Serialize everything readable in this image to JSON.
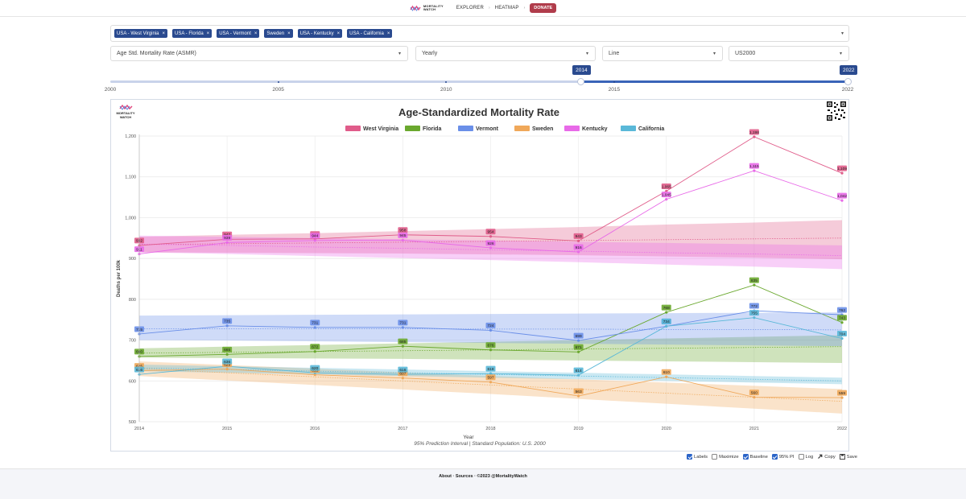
{
  "nav": {
    "logo_line1": "MORTALITY",
    "logo_line2": "WATCH",
    "explorer": "EXPLORER",
    "heatmap": "HEATMAP",
    "donate": "DONATE",
    "separator": "›"
  },
  "countries": [
    {
      "label": "USA - West Virginia",
      "remove": "×"
    },
    {
      "label": "USA - Florida",
      "remove": "×"
    },
    {
      "label": "USA - Vermont",
      "remove": "×"
    },
    {
      "label": "Sweden",
      "remove": "×"
    },
    {
      "label": "USA - Kentucky",
      "remove": "×"
    },
    {
      "label": "USA - California",
      "remove": "×"
    }
  ],
  "controls": {
    "metric": "Age Std. Mortality Rate (ASMR)",
    "period": "Yearly",
    "chart_type": "Line",
    "std_population": "US2000",
    "caret": "▾"
  },
  "slider": {
    "range_start": 2000,
    "range_end": 2022,
    "selected_from": "2014",
    "selected_to": "2022",
    "tick_labels": [
      "2000",
      "2005",
      "2010",
      "2015",
      "2022"
    ],
    "tick_values": [
      2000,
      2005,
      2010,
      2015,
      2022
    ]
  },
  "chart_logo": {
    "line1": "MORTALITY",
    "line2": "WATCH"
  },
  "options": {
    "labels": {
      "label": "Labels",
      "checked": true
    },
    "maximize": {
      "label": "Maximize",
      "checked": false
    },
    "baseline": {
      "label": "Baseline",
      "checked": true
    },
    "pi": {
      "label": "95% PI",
      "checked": true
    },
    "log": {
      "label": "Log",
      "checked": false
    },
    "copy": "Copy",
    "save": "Save"
  },
  "footer": "About · Sources · ©2023 @MortalityWatch",
  "chart_data": {
    "type": "line",
    "title": "Age-Standardized Mortality Rate",
    "xlabel": "Year",
    "ylabel": "Deaths per 100k",
    "subtitle": "95% Prediction Interval | Standard Population: U.S. 2000",
    "x": [
      2014,
      2015,
      2016,
      2017,
      2018,
      2019,
      2020,
      2021,
      2022
    ],
    "ylim": [
      500,
      1200
    ],
    "yticks": [
      500,
      600,
      700,
      800,
      900,
      1000,
      1100,
      1200
    ],
    "ytick_labels": [
      "500",
      "600",
      "700",
      "800",
      "900",
      "1,000",
      "1,100",
      "1,200"
    ],
    "grid": true,
    "legend": "top-center",
    "series": [
      {
        "name": "West Virginia",
        "color": "#e05c8a",
        "values": [
          932,
          947,
          948,
          958,
          954,
          943,
          1065,
          1198,
          1109
        ],
        "labels": [
          "932",
          "947",
          "948",
          "958",
          "954",
          "943",
          "1,065",
          "1,198",
          "1,109"
        ],
        "baseline": [
          934,
          936,
          938,
          940,
          942,
          944,
          946,
          948,
          950
        ],
        "pi_lo": [
          915,
          914,
          913,
          912,
          910,
          908,
          905,
          902,
          898
        ],
        "pi_hi": [
          953,
          958,
          962,
          967,
          972,
          977,
          983,
          988,
          994
        ]
      },
      {
        "name": "Florida",
        "color": "#6aa82e",
        "values": [
          660,
          665,
          672,
          685,
          676,
          671,
          768,
          835,
          743
        ],
        "labels": [
          "660",
          "665",
          "672",
          "685",
          "676",
          "671",
          "768",
          "835",
          "743"
        ],
        "baseline": [
          668,
          670,
          672,
          674,
          676,
          678,
          680,
          682,
          684
        ],
        "pi_lo": [
          657,
          656,
          655,
          654,
          652,
          650,
          648,
          646,
          644
        ],
        "pi_hi": [
          680,
          684,
          688,
          692,
          696,
          700,
          704,
          708,
          712
        ]
      },
      {
        "name": "Vermont",
        "color": "#6a8fe8",
        "values": [
          715,
          735,
          731,
          731,
          724,
          699,
          734,
          772,
          762
        ],
        "labels": [
          "715",
          "735",
          "731",
          "731",
          "724",
          "699",
          "734",
          "772",
          "762"
        ],
        "baseline": [
          728,
          728,
          728,
          728,
          727,
          727,
          726,
          726,
          725
        ],
        "pi_lo": [
          700,
          699,
          697,
          695,
          693,
          691,
          689,
          687,
          685
        ],
        "pi_hi": [
          760,
          761,
          762,
          763,
          764,
          765,
          766,
          767,
          768
        ]
      },
      {
        "name": "Sweden",
        "color": "#f0a85a",
        "values": [
          625,
          629,
          615,
          607,
          597,
          563,
          610,
          560,
          559
        ],
        "labels": [
          "625",
          "629",
          "615",
          "607",
          "597",
          "563",
          "610",
          "560",
          "559"
        ],
        "baseline": [
          630,
          620,
          610,
          600,
          590,
          580,
          570,
          560,
          550
        ],
        "pi_lo": [
          612,
          601,
          590,
          579,
          568,
          556,
          544,
          532,
          520
        ],
        "pi_hi": [
          648,
          639,
          630,
          621,
          612,
          604,
          596,
          588,
          580
        ]
      },
      {
        "name": "Kentucky",
        "color": "#e86ae8",
        "values": [
          911,
          939,
          944,
          945,
          926,
          916,
          1045,
          1115,
          1042
        ],
        "labels": [
          "911",
          "939",
          "944",
          "945",
          "926",
          "916",
          "1,045",
          "1,115",
          "1,042"
        ],
        "baseline": [
          935,
          932,
          928,
          925,
          921,
          918,
          914,
          911,
          907
        ],
        "pi_lo": [
          915,
          911,
          906,
          901,
          896,
          891,
          885,
          880,
          874
        ],
        "pi_hi": [
          956,
          953,
          950,
          947,
          944,
          941,
          938,
          935,
          932
        ]
      },
      {
        "name": "California",
        "color": "#5ab8d8",
        "values": [
          616,
          636,
          620,
          616,
          618,
          614,
          734,
          755,
          704
        ],
        "labels": [
          "616",
          "636",
          "620",
          "616",
          "618",
          "614",
          "734",
          "755",
          "704"
        ],
        "baseline": [
          632,
          628,
          624,
          620,
          616,
          612,
          608,
          604,
          600
        ],
        "pi_lo": [
          624,
          620,
          616,
          612,
          608,
          604,
          600,
          596,
          592
        ],
        "pi_hi": [
          640,
          636,
          632,
          628,
          624,
          620,
          616,
          612,
          608
        ]
      }
    ]
  }
}
